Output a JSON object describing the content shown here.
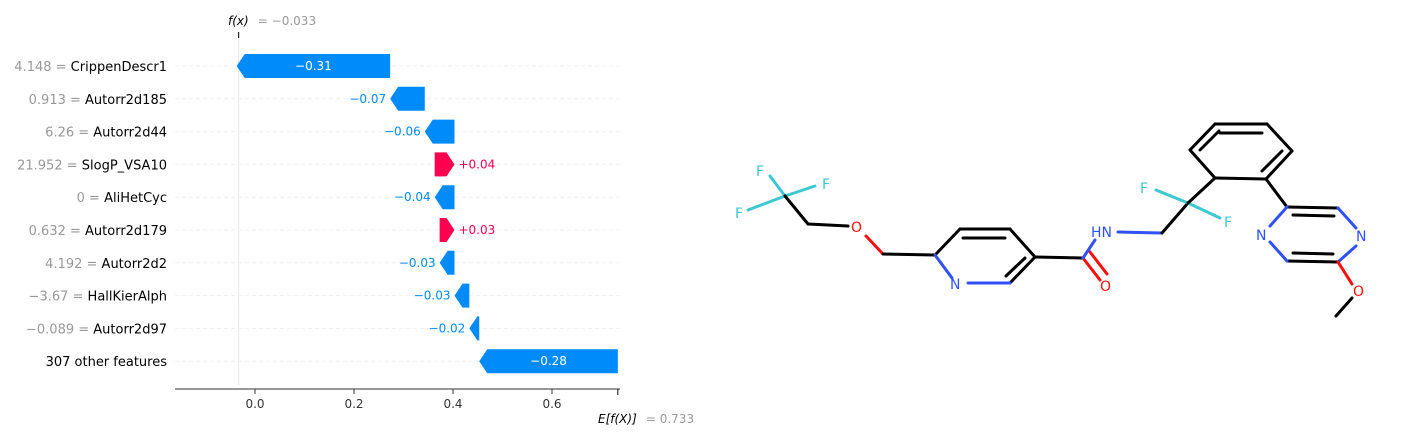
{
  "chart_data": {
    "type": "bar",
    "subtype": "shap-waterfall",
    "fx_label": "f(x)",
    "fx_value": "= −0.033",
    "fx": -0.033,
    "ex_label": "E[f(X)]",
    "ex_value": "= 0.733",
    "base_value": 0.733,
    "xlim": [
      -0.16,
      0.74
    ],
    "xticks": [
      0.0,
      0.2,
      0.4,
      0.6
    ],
    "xtick_labels": [
      "0.0",
      "0.2",
      "0.4",
      "0.6"
    ],
    "features": [
      {
        "value": "4.148 =",
        "name": "CrippenDescr1",
        "shap": -0.31,
        "label": "−0.31"
      },
      {
        "value": "0.913 =",
        "name": "Autorr2d185",
        "shap": -0.07,
        "label": "−0.07"
      },
      {
        "value": "6.26 =",
        "name": "Autorr2d44",
        "shap": -0.06,
        "label": "−0.06"
      },
      {
        "value": "21.952 =",
        "name": "SlogP_VSA10",
        "shap": 0.04,
        "label": "+0.04"
      },
      {
        "value": "0 =",
        "name": "AliHetCyc",
        "shap": -0.04,
        "label": "−0.04"
      },
      {
        "value": "0.632 =",
        "name": "Autorr2d179",
        "shap": 0.03,
        "label": "+0.03"
      },
      {
        "value": "4.192 =",
        "name": "Autorr2d2",
        "shap": -0.03,
        "label": "−0.03"
      },
      {
        "value": "−3.67 =",
        "name": "HallKierAlph",
        "shap": -0.03,
        "label": "−0.03"
      },
      {
        "value": "−0.089 =",
        "name": "Autorr2d97",
        "shap": -0.02,
        "label": "−0.02"
      },
      {
        "value": "",
        "name": "307 other features",
        "shap": -0.28,
        "label": "−0.28"
      }
    ],
    "colors": {
      "negative": "#008bfb",
      "positive": "#ff0051"
    }
  },
  "molecule": {
    "atoms": {
      "F": "F",
      "O": "O",
      "N": "N",
      "NH": "HN"
    },
    "colors": {
      "carbon": "#000000",
      "oxygen": "#ff0d0d",
      "nitrogen": "#3050f8",
      "fluorine": "#3cc8d0"
    }
  }
}
